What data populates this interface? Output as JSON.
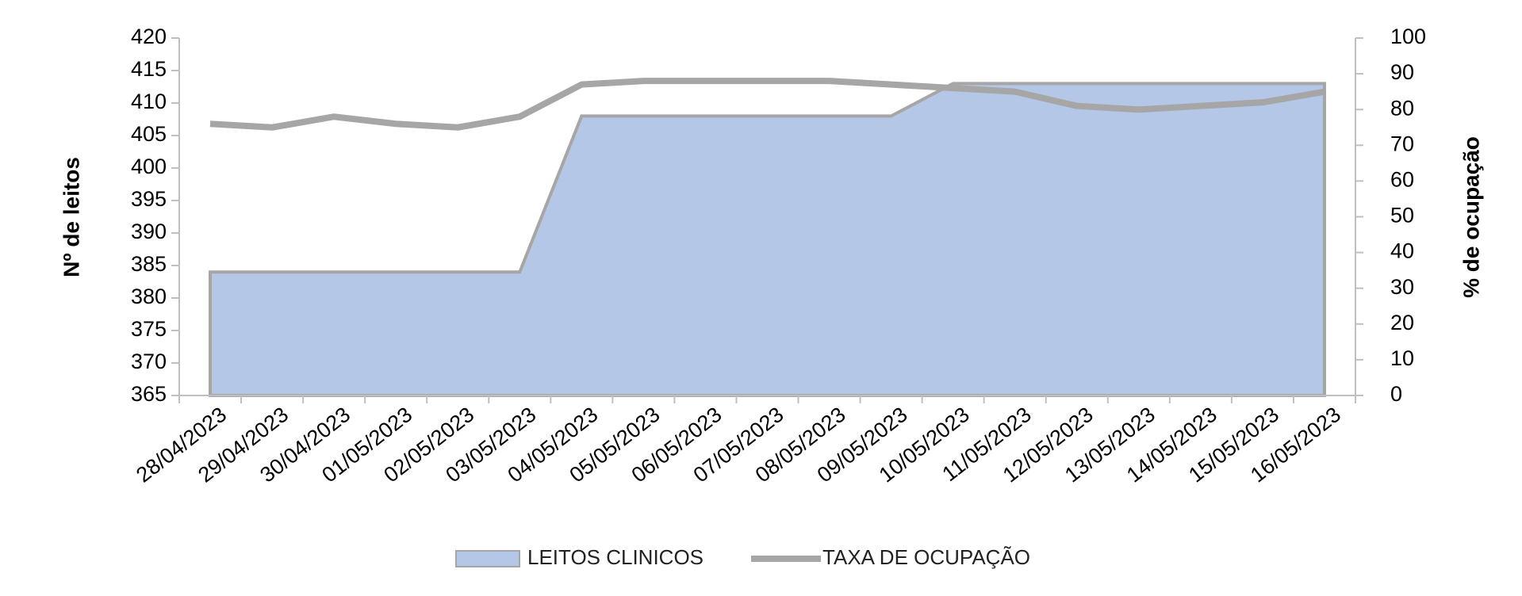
{
  "chart_data": {
    "type": "combo",
    "y_label": "Nº de leitos",
    "y2_label": "% de ocupação",
    "categories": [
      "28/04/2023",
      "29/04/2023",
      "30/04/2023",
      "01/05/2023",
      "02/05/2023",
      "03/05/2023",
      "04/05/2023",
      "05/05/2023",
      "06/05/2023",
      "07/05/2023",
      "08/05/2023",
      "09/05/2023",
      "10/05/2023",
      "11/05/2023",
      "12/05/2023",
      "13/05/2023",
      "14/05/2023",
      "15/05/2023",
      "16/05/2023"
    ],
    "series": [
      {
        "name": "LEITOS CLINICOS",
        "type": "area",
        "axis": "y",
        "color": "#b4c7e7",
        "edge_color": "#a6a6a6",
        "values": [
          384,
          384,
          384,
          384,
          384,
          384,
          408,
          408,
          408,
          408,
          408,
          408,
          413,
          413,
          413,
          413,
          413,
          413,
          413
        ]
      },
      {
        "name": "TAXA DE OCUPAÇÃO",
        "type": "line",
        "axis": "y2",
        "color": "#a6a6a6",
        "values": [
          76,
          75,
          78,
          76,
          75,
          78,
          87,
          88,
          88,
          88,
          88,
          87,
          86,
          85,
          81,
          80,
          81,
          82,
          85
        ]
      }
    ],
    "ylim": [
      365,
      420
    ],
    "yticks": [
      365,
      370,
      375,
      380,
      385,
      390,
      395,
      400,
      405,
      410,
      415,
      420
    ],
    "y2lim": [
      0,
      100
    ],
    "y2ticks": [
      0,
      10,
      20,
      30,
      40,
      50,
      60,
      70,
      80,
      90,
      100
    ],
    "legend": "bottom"
  }
}
